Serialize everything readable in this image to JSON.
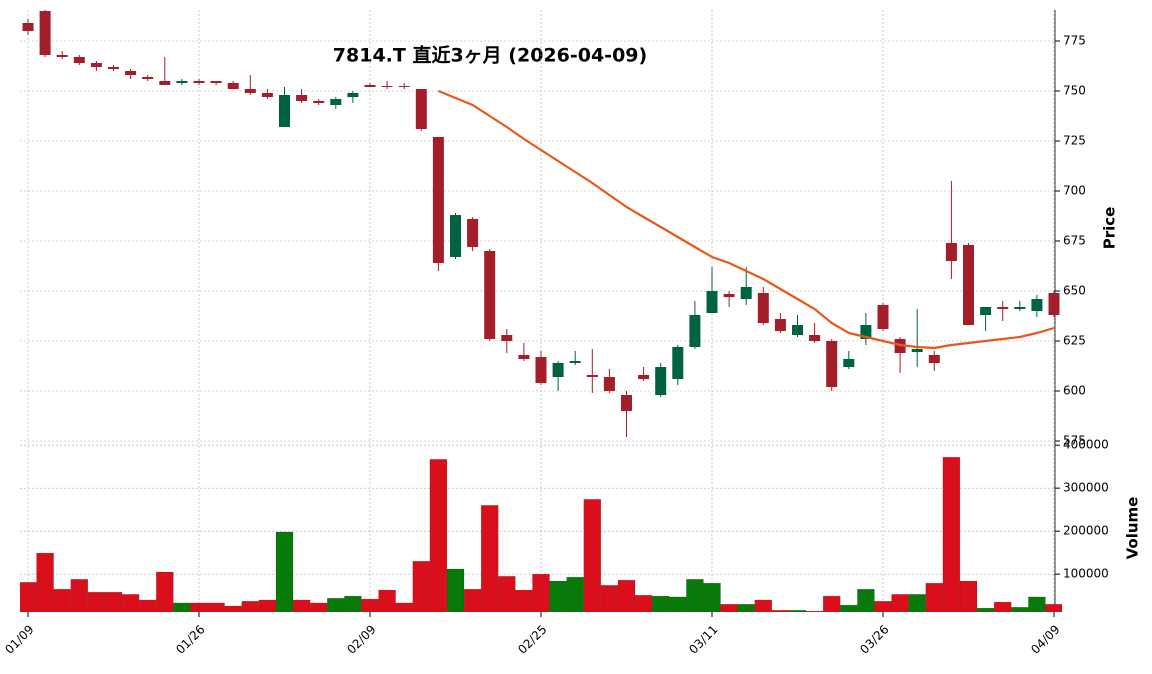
{
  "chart_data": {
    "type": "candlestick",
    "title": "7814.T  直近3ヶ月  (2026-04-09)",
    "categories": [
      "01/09",
      null,
      null,
      null,
      null,
      null,
      null,
      null,
      null,
      null,
      "01/26",
      null,
      null,
      null,
      null,
      null,
      null,
      null,
      null,
      null,
      "02/09",
      null,
      null,
      null,
      null,
      null,
      null,
      null,
      null,
      null,
      "02/25",
      null,
      null,
      null,
      null,
      null,
      null,
      null,
      null,
      null,
      "03/11",
      null,
      null,
      null,
      null,
      null,
      null,
      null,
      null,
      null,
      "03/26",
      null,
      null,
      null,
      null,
      null,
      null,
      null,
      null,
      null,
      "04/09"
    ],
    "open": [
      784,
      790,
      768,
      767,
      764,
      762,
      760,
      757,
      755,
      754,
      755,
      755,
      754,
      751,
      749,
      732,
      748,
      745,
      743,
      747,
      753,
      752.5,
      752.5,
      751,
      727,
      667,
      686,
      670,
      628,
      618,
      617,
      607,
      614,
      608,
      607,
      598,
      608,
      598,
      606,
      622,
      639,
      648.5,
      646,
      649,
      636,
      628,
      628,
      625,
      612,
      626,
      643,
      626,
      619.5,
      618,
      674,
      673,
      638,
      642,
      641,
      640,
      649
    ],
    "high": [
      786,
      791,
      770,
      768,
      765,
      763,
      761,
      758,
      767,
      756,
      756,
      755,
      755,
      758,
      751,
      752,
      751,
      746,
      747,
      750,
      754,
      755,
      754,
      751,
      727,
      689,
      687,
      671,
      631,
      624,
      620,
      615,
      620,
      621,
      611,
      600,
      612,
      614,
      623,
      645,
      662,
      650,
      662,
      652,
      639,
      638,
      634,
      626,
      620,
      639,
      644,
      627,
      641,
      620,
      705,
      674,
      642,
      645,
      645,
      648,
      650
    ],
    "low": [
      778,
      767,
      766,
      763,
      760,
      760,
      756,
      755,
      753,
      753,
      753,
      753,
      751,
      748,
      746,
      732,
      744,
      743,
      741,
      744,
      752,
      751,
      751,
      730,
      660,
      666,
      670,
      625,
      619,
      615,
      603,
      600,
      613,
      599,
      599,
      577,
      605,
      597,
      603,
      621,
      639,
      642,
      643,
      633,
      629,
      627,
      624,
      600,
      611,
      623,
      630,
      609,
      612,
      610,
      656,
      633,
      630,
      635,
      640,
      637,
      637
    ],
    "close": [
      780,
      768,
      767,
      764,
      762,
      761,
      758,
      756,
      753,
      755,
      754,
      754,
      751,
      749,
      747,
      748,
      745,
      744,
      746,
      749,
      752,
      752,
      752,
      731,
      664,
      688,
      672,
      626,
      625,
      616,
      604,
      614,
      615,
      607,
      600,
      590,
      606,
      612,
      622,
      638,
      650,
      647,
      652,
      634,
      630,
      633,
      625,
      602,
      616,
      633,
      631,
      619,
      621,
      614,
      665,
      633,
      642,
      641,
      642,
      646,
      638
    ],
    "up_color": "#006340",
    "down_color": "#a31d2a",
    "ylim": [
      574,
      790.5
    ],
    "yticks": [
      575,
      600,
      625,
      650,
      675,
      700,
      725,
      750,
      775
    ],
    "ylabel": "Price",
    "ma": {
      "color": "#e8581c",
      "values": [
        null,
        null,
        null,
        null,
        null,
        null,
        null,
        null,
        null,
        null,
        null,
        null,
        null,
        null,
        null,
        null,
        null,
        null,
        null,
        null,
        null,
        null,
        null,
        null,
        750,
        746.5,
        743,
        737.5,
        732,
        726,
        720.5,
        715,
        709.5,
        704,
        698,
        692,
        687,
        682,
        677,
        672,
        667,
        664,
        660,
        656,
        651,
        646,
        641,
        634,
        629,
        627,
        625,
        623,
        622,
        621.5,
        623,
        624,
        625,
        626,
        627,
        629,
        631.5
      ]
    },
    "volume": {
      "ylabel": "Volume",
      "up_color": "#087a0a",
      "down_color": "#d9101c",
      "ylim": [
        12000,
        405000
      ],
      "yticks": [
        100000,
        200000,
        300000,
        400000
      ],
      "values": [
        81000,
        149000,
        65000,
        88000,
        58000,
        58000,
        53000,
        40000,
        105000,
        33000,
        33000,
        33000,
        26000,
        37000,
        40000,
        198000,
        40000,
        33000,
        44000,
        49000,
        42000,
        63000,
        33000,
        130000,
        367000,
        112000,
        65000,
        260000,
        95000,
        63000,
        100000,
        84000,
        93000,
        274000,
        74000,
        86000,
        51000,
        49000,
        47000,
        88000,
        79000,
        30000,
        30000,
        40000,
        16000,
        16000,
        14000,
        49000,
        28000,
        65000,
        37000,
        53000,
        53000,
        79000,
        372000,
        84000,
        21000,
        35000,
        23000,
        47000,
        30000
      ]
    },
    "grid": true
  }
}
